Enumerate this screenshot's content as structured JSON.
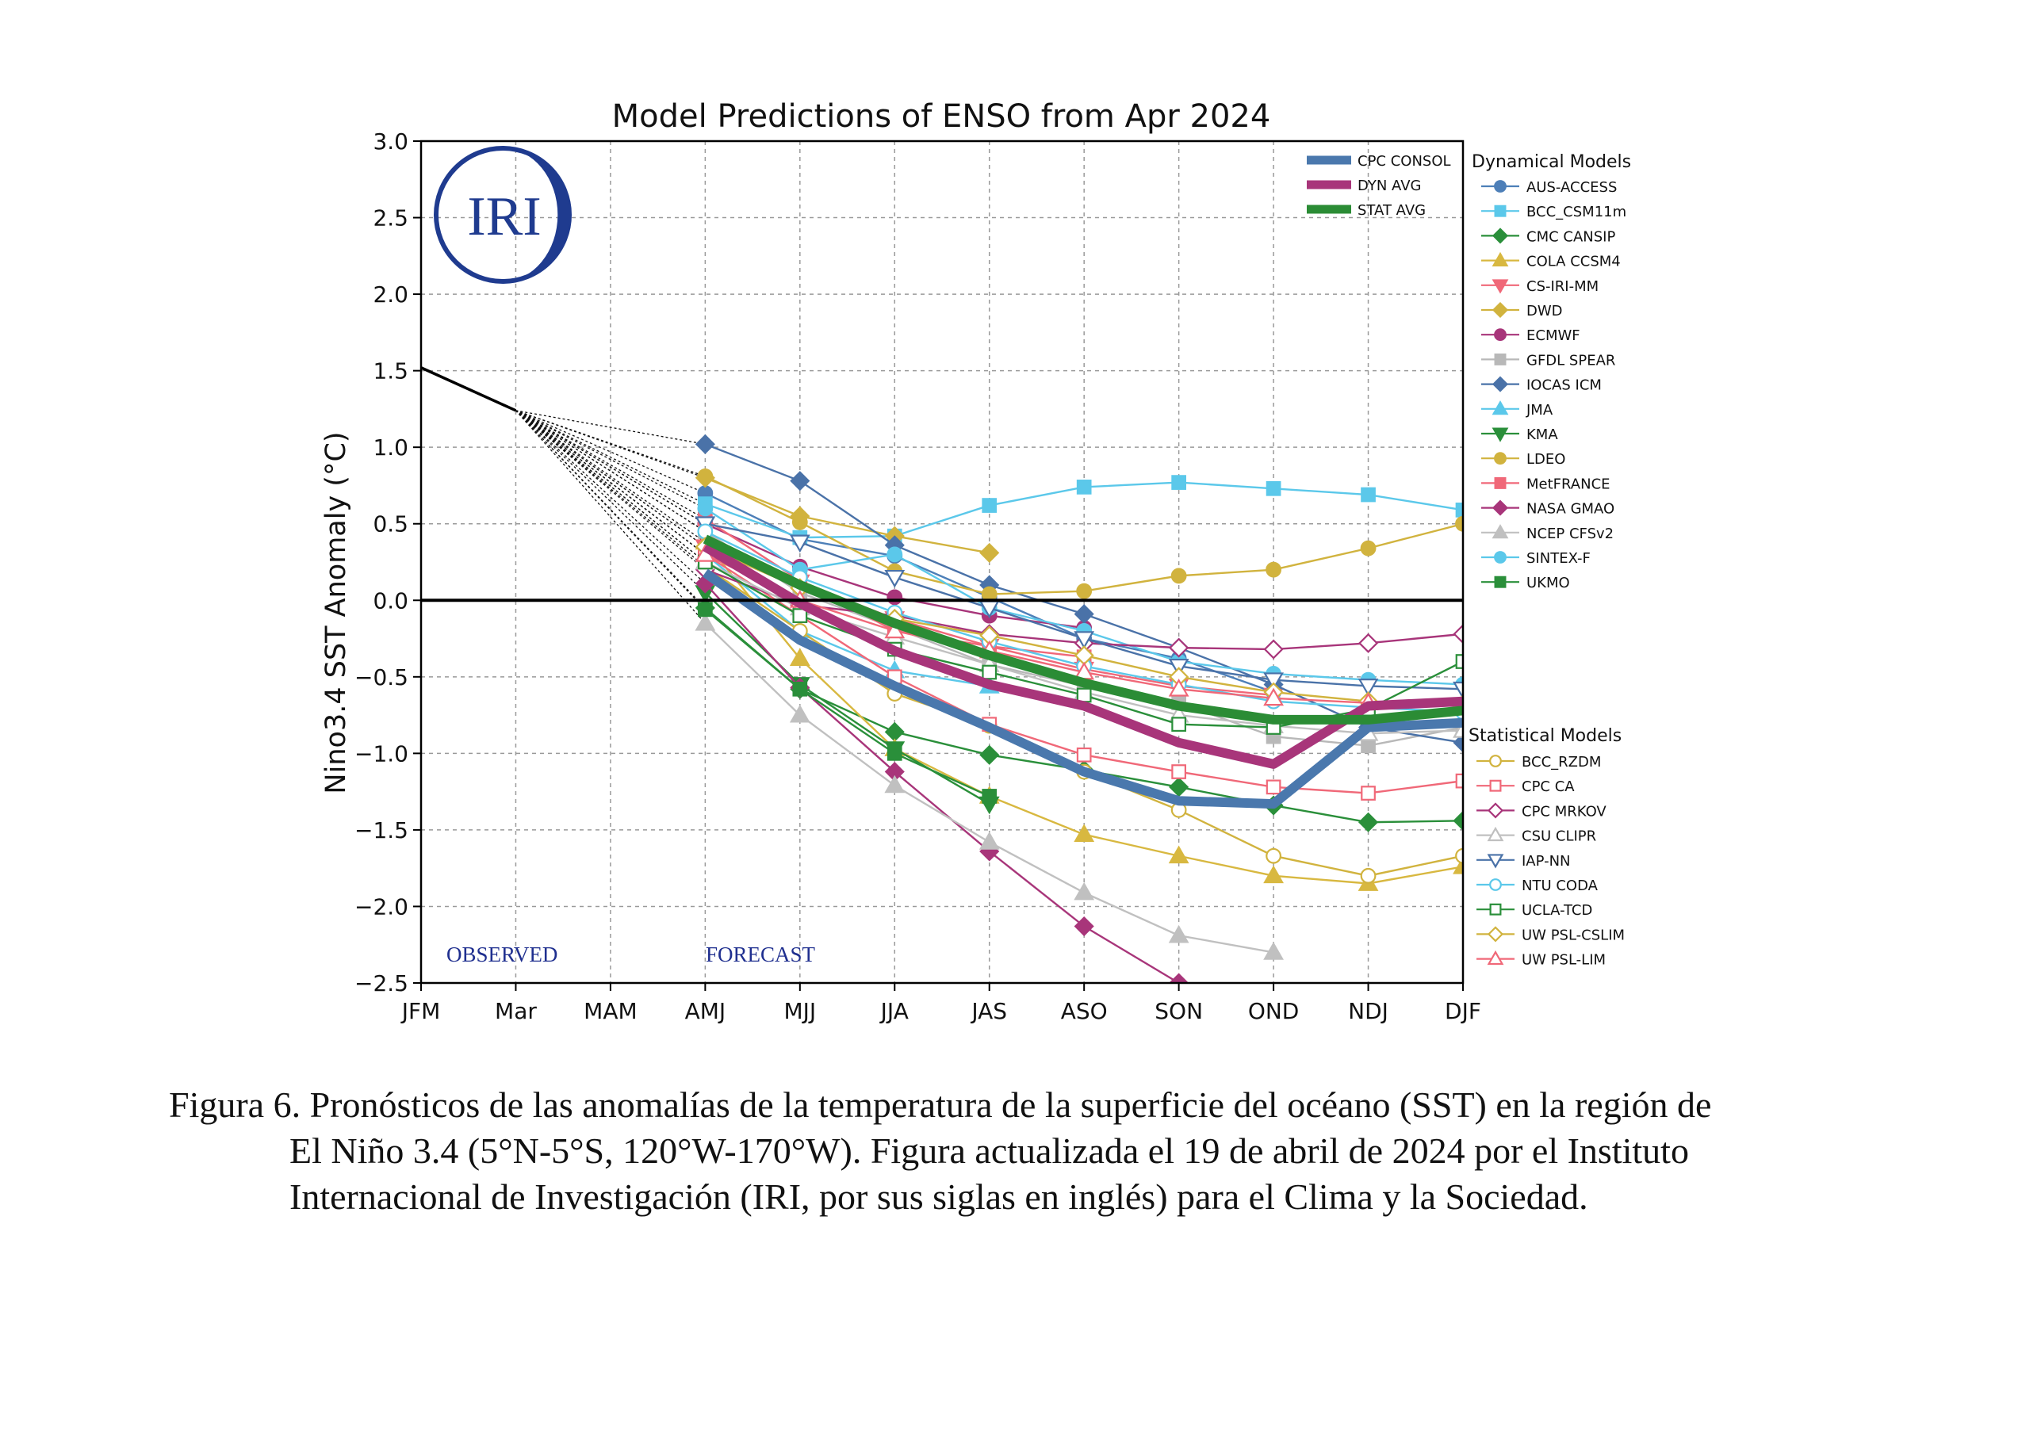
{
  "figure_caption": {
    "line1": "Figura 6. Pronósticos de las anomalías de la temperatura de la superficie del océano (SST) en la región de",
    "line2": "El Niño 3.4 (5°N-5°S, 120°W-170°W). Figura actualizada el 19 de abril de 2024 por el Instituto",
    "line3": "Internacional de Investigación (IRI, por sus siglas en inglés) para el Clima y la Sociedad."
  },
  "logo_text": "IRI",
  "chart_data": {
    "type": "line",
    "title": "Model Predictions of ENSO from Apr 2024",
    "ylabel": "Nino3.4 SST Anomaly (°C)",
    "xlabel": "",
    "ylim": [
      -2.5,
      3.0
    ],
    "yticks": [
      3.0,
      2.5,
      2.0,
      1.5,
      1.0,
      0.5,
      0.0,
      -0.5,
      -1.0,
      -1.5,
      -2.0,
      -2.5
    ],
    "ytick_labels": [
      "3.0",
      "2.5",
      "2.0",
      "1.5",
      "1.0",
      "0.5",
      "0.0",
      "−0.5",
      "−1.0",
      "−1.5",
      "−2.0",
      "−2.5"
    ],
    "categories": [
      "JFM",
      "Mar",
      "MAM",
      "AMJ",
      "MJJ",
      "JJA",
      "JAS",
      "ASO",
      "SON",
      "OND",
      "NDJ",
      "DJF"
    ],
    "grid": true,
    "zero_line": 0.0,
    "annotations": {
      "observed": "OBSERVED",
      "forecast": "FORECAST"
    },
    "observed": {
      "x": [
        "JFM",
        "Mar"
      ],
      "values": [
        1.52,
        1.24
      ]
    },
    "legend_averages_title": "",
    "legend_dynamical_title": "Dynamical Models",
    "legend_statistical_title": "Statistical Models",
    "averages": [
      {
        "name": "CPC CONSOL",
        "color": "#4a78ad",
        "values": [
          null,
          null,
          null,
          0.18,
          -0.26,
          -0.56,
          -0.83,
          -1.12,
          -1.31,
          -1.33,
          -0.83,
          -0.8
        ]
      },
      {
        "name": "DYN AVG",
        "color": "#a8357a",
        "values": [
          null,
          null,
          null,
          0.35,
          -0.02,
          -0.33,
          -0.55,
          -0.69,
          -0.93,
          -1.07,
          -0.69,
          -0.66
        ]
      },
      {
        "name": "STAT AVG",
        "color": "#2b8c35",
        "values": [
          null,
          null,
          null,
          0.4,
          0.1,
          -0.15,
          -0.36,
          -0.54,
          -0.69,
          -0.78,
          -0.78,
          -0.72
        ]
      }
    ],
    "dynamical_models": [
      {
        "name": "AUS-ACCESS",
        "color": "#4d7fb8",
        "marker": "circle",
        "values": [
          null,
          null,
          null,
          0.7,
          0.4,
          0.29,
          0.02,
          -0.25,
          -0.38,
          -0.6,
          null,
          null
        ]
      },
      {
        "name": "BCC_CSM11m",
        "color": "#5bc8ea",
        "marker": "square",
        "values": [
          null,
          null,
          null,
          0.63,
          0.41,
          0.42,
          0.62,
          0.74,
          0.77,
          0.73,
          0.69,
          0.59
        ]
      },
      {
        "name": "CMC CANSIP",
        "color": "#2a8f3a",
        "marker": "diamond",
        "values": [
          null,
          null,
          null,
          -0.05,
          -0.58,
          -0.86,
          -1.01,
          -1.11,
          -1.22,
          -1.34,
          -1.45,
          -1.44
        ]
      },
      {
        "name": "COLA CCSM4",
        "color": "#d8b840",
        "marker": "triangle-up",
        "values": [
          null,
          null,
          null,
          0.38,
          -0.38,
          -0.97,
          -1.28,
          -1.53,
          -1.67,
          -1.8,
          -1.85,
          -1.74
        ]
      },
      {
        "name": "CS-IRI-MM",
        "color": "#f06878",
        "marker": "triangle-down",
        "values": [
          null,
          null,
          null,
          0.35,
          0.12,
          -0.12,
          -0.3,
          -0.45,
          -0.56,
          -0.62,
          null,
          null
        ]
      },
      {
        "name": "DWD",
        "color": "#d1b33e",
        "marker": "diamond",
        "values": [
          null,
          null,
          null,
          0.8,
          0.55,
          0.42,
          0.31,
          null,
          null,
          null,
          null,
          null
        ]
      },
      {
        "name": "ECMWF",
        "color": "#a8357a",
        "marker": "circle",
        "values": [
          null,
          null,
          null,
          0.5,
          0.22,
          0.02,
          -0.1,
          -0.18,
          null,
          null,
          null,
          null
        ]
      },
      {
        "name": "GFDL SPEAR",
        "color": "#b8b8b8",
        "marker": "square",
        "values": [
          null,
          null,
          null,
          0.45,
          0.05,
          -0.18,
          -0.42,
          -0.56,
          -0.67,
          -0.89,
          -0.95,
          -0.83
        ]
      },
      {
        "name": "IOCAS ICM",
        "color": "#4a72a8",
        "marker": "diamond",
        "values": [
          null,
          null,
          null,
          1.02,
          0.78,
          0.36,
          0.1,
          -0.09,
          -0.31,
          -0.55,
          -0.83,
          -0.93
        ]
      },
      {
        "name": "JMA",
        "color": "#5bc8ea",
        "marker": "triangle-up",
        "values": [
          null,
          null,
          null,
          0.3,
          -0.2,
          -0.46,
          -0.56,
          null,
          null,
          null,
          null,
          null
        ]
      },
      {
        "name": "KMA",
        "color": "#2a8f3a",
        "marker": "triangle-down",
        "values": [
          null,
          null,
          null,
          0.05,
          -0.55,
          -0.97,
          -1.33,
          null,
          null,
          null,
          null,
          null
        ]
      },
      {
        "name": "LDEO",
        "color": "#d1b33e",
        "marker": "circle",
        "values": [
          null,
          null,
          null,
          0.81,
          0.51,
          0.19,
          0.04,
          0.06,
          0.16,
          0.2,
          0.34,
          0.5
        ]
      },
      {
        "name": "MetFRANCE",
        "color": "#f06878",
        "marker": "square",
        "values": [
          null,
          null,
          null,
          0.53,
          0.13,
          -0.2,
          -0.3,
          -0.37,
          null,
          null,
          null,
          null
        ]
      },
      {
        "name": "NASA GMAO",
        "color": "#a8357a",
        "marker": "diamond",
        "values": [
          null,
          null,
          null,
          0.11,
          -0.57,
          -1.12,
          -1.64,
          -2.13,
          -2.5,
          null,
          null,
          null
        ]
      },
      {
        "name": "NCEP CFSv2",
        "color": "#c0c0c0",
        "marker": "triangle-up",
        "values": [
          null,
          null,
          null,
          -0.15,
          -0.75,
          -1.21,
          -1.58,
          -1.91,
          -2.19,
          -2.3,
          null,
          null
        ]
      },
      {
        "name": "SINTEX-F",
        "color": "#5bc8ea",
        "marker": "circle",
        "values": [
          null,
          null,
          null,
          0.6,
          0.2,
          0.3,
          -0.05,
          -0.2,
          -0.4,
          -0.48,
          -0.52,
          -0.55
        ]
      },
      {
        "name": "UKMO",
        "color": "#2a8f3a",
        "marker": "square",
        "values": [
          null,
          null,
          null,
          -0.06,
          -0.58,
          -1.0,
          -1.28,
          null,
          null,
          null,
          null,
          null
        ]
      }
    ],
    "statistical_models": [
      {
        "name": "BCC_RZDM",
        "color": "#d1b33e",
        "marker": "circle",
        "values": [
          null,
          null,
          null,
          0.22,
          -0.2,
          -0.61,
          -0.82,
          -1.12,
          -1.37,
          -1.67,
          -1.8,
          -1.67
        ]
      },
      {
        "name": "CPC CA",
        "color": "#f06878",
        "marker": "square",
        "values": [
          null,
          null,
          null,
          0.3,
          -0.1,
          -0.5,
          -0.81,
          -1.01,
          -1.12,
          -1.22,
          -1.26,
          -1.18
        ]
      },
      {
        "name": "CPC MRKOV",
        "color": "#a8357a",
        "marker": "diamond",
        "values": [
          null,
          null,
          null,
          0.2,
          -0.03,
          -0.1,
          -0.22,
          -0.28,
          -0.31,
          -0.32,
          -0.28,
          -0.22
        ]
      },
      {
        "name": "CSU CLIPR",
        "color": "#c0c0c0",
        "marker": "triangle-up",
        "values": [
          null,
          null,
          null,
          0.25,
          -0.05,
          -0.24,
          -0.42,
          -0.6,
          -0.75,
          -0.82,
          -0.87,
          -0.85
        ]
      },
      {
        "name": "IAP-NN",
        "color": "#4a72a8",
        "marker": "triangle-down",
        "values": [
          null,
          null,
          null,
          0.5,
          0.38,
          0.15,
          -0.05,
          -0.25,
          -0.43,
          -0.52,
          -0.56,
          -0.58
        ]
      },
      {
        "name": "NTU CODA",
        "color": "#5bc8ea",
        "marker": "circle",
        "values": [
          null,
          null,
          null,
          0.45,
          0.15,
          -0.08,
          -0.27,
          -0.43,
          -0.55,
          -0.66,
          -0.7,
          -0.73
        ]
      },
      {
        "name": "UCLA-TCD",
        "color": "#2a8f3a",
        "marker": "square",
        "values": [
          null,
          null,
          null,
          0.25,
          -0.1,
          -0.32,
          -0.47,
          -0.62,
          -0.81,
          -0.83,
          -0.71,
          -0.4
        ]
      },
      {
        "name": "UW PSL-CSLIM",
        "color": "#d1b33e",
        "marker": "diamond",
        "values": [
          null,
          null,
          null,
          0.35,
          0.08,
          -0.12,
          -0.23,
          -0.36,
          -0.5,
          -0.6,
          -0.66,
          -0.68
        ]
      },
      {
        "name": "UW PSL-LIM",
        "color": "#f06878",
        "marker": "triangle-up",
        "values": [
          null,
          null,
          null,
          0.3,
          0.0,
          -0.2,
          -0.33,
          -0.47,
          -0.58,
          -0.64,
          -0.67,
          -0.69
        ]
      }
    ]
  }
}
